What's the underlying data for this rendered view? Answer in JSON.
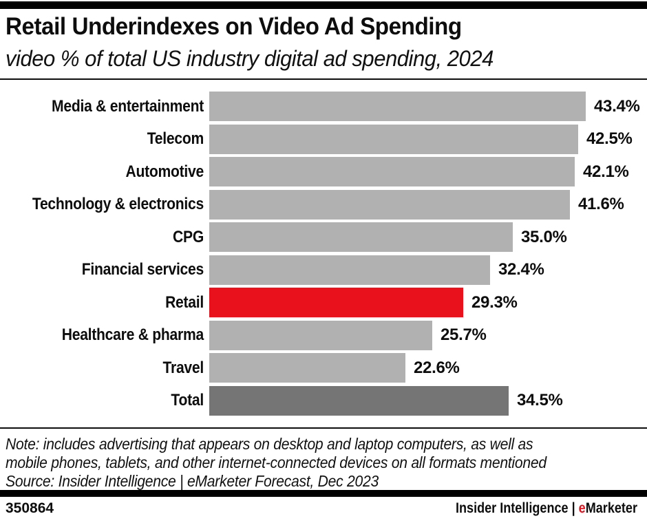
{
  "chart_data": {
    "type": "bar",
    "orientation": "horizontal",
    "title": "Retail Underindexes on Video Ad Spending",
    "subtitle": "video % of total US industry digital ad spending, 2024",
    "categories": [
      "Media & entertainment",
      "Telecom",
      "Automotive",
      "Technology & electronics",
      "CPG",
      "Financial services",
      "Retail",
      "Healthcare & pharma",
      "Travel",
      "Total"
    ],
    "values": [
      43.4,
      42.5,
      42.1,
      41.6,
      35.0,
      32.4,
      29.3,
      25.7,
      22.6,
      34.5
    ],
    "value_labels": [
      "43.4%",
      "42.5%",
      "42.1%",
      "41.6%",
      "35.0%",
      "32.4%",
      "29.3%",
      "25.7%",
      "22.6%",
      "34.5%"
    ],
    "bar_styles": [
      "default",
      "default",
      "default",
      "default",
      "default",
      "default",
      "highlight",
      "default",
      "default",
      "total"
    ],
    "colors": {
      "default": "#b1b1b1",
      "highlight": "#e8111c",
      "total": "#757575"
    },
    "xlim": [
      0,
      43.4
    ],
    "xlabel": "",
    "ylabel": "",
    "grid": false,
    "legend": false,
    "value_label_position": "right-of-bar",
    "highlighted_category": "Retail"
  },
  "footnote": {
    "lines": [
      "Note: includes advertising that appears on desktop and laptop computers, as well as",
      "mobile phones, tablets, and other internet-connected devices on all formats mentioned"
    ],
    "source": "Source: Insider Intelligence | eMarketer Forecast, Dec 2023"
  },
  "footer": {
    "chart_id": "350864",
    "brand_prefix": "Insider Intelligence | ",
    "brand_e": "e",
    "brand_rest": "Marketer"
  },
  "accent_color": "#e8111c"
}
